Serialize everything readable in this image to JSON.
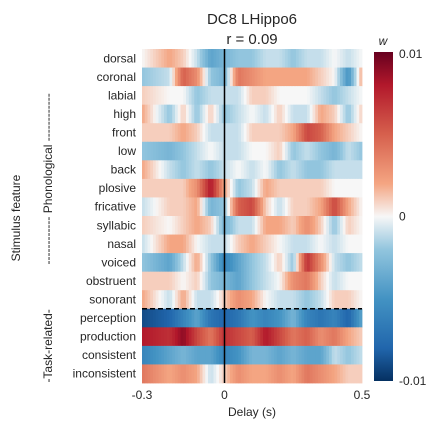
{
  "chart_data": {
    "type": "heatmap",
    "title": "DC8 LHippo6",
    "subtitle": "r = 0.09",
    "xlabel": "Delay (s)",
    "ylabel": "Stimulus feature",
    "xlim": [
      -0.3,
      0.5
    ],
    "x_ticks": [
      {
        "value": -0.3,
        "label": "-0.3"
      },
      {
        "value": 0,
        "label": "0"
      },
      {
        "value": 0.5,
        "label": "0.5"
      }
    ],
    "features": [
      "dorsal",
      "coronal",
      "labial",
      "high",
      "front",
      "low",
      "back",
      "plosive",
      "fricative",
      "syllabic",
      "nasal",
      "voiced",
      "obstruent",
      "sonorant",
      "perception",
      "production",
      "consistent",
      "inconsistent"
    ],
    "groups": [
      {
        "label": "------------ Phonological ------------",
        "rows": [
          0,
          13
        ]
      },
      {
        "label": "-Task-related-",
        "rows": [
          14,
          17
        ]
      }
    ],
    "colorbar": {
      "title": "w",
      "min": -0.01,
      "max": 0.01,
      "ticks": [
        {
          "value": 0.01,
          "label": "0.01"
        },
        {
          "value": 0,
          "label": "0"
        },
        {
          "value": -0.01,
          "label": "-0.01"
        }
      ]
    },
    "cell_keys": [
      -0.3,
      -0.2,
      -0.15,
      -0.1,
      -0.05,
      0,
      0.05,
      0.1,
      0.15,
      0.2,
      0.25,
      0.3,
      0.35,
      0.4,
      0.45,
      0.5
    ],
    "cell_values": [
      [
        0.0,
        0.002,
        0.001,
        -0.001,
        -0.004,
        -0.003,
        -0.002,
        -0.002,
        -0.001,
        -0.001,
        -0.002,
        -0.001,
        -0.001,
        0.0,
        -0.001,
        0.0
      ],
      [
        -0.002,
        -0.001,
        0.005,
        0.003,
        -0.002,
        -0.003,
        0.004,
        0.003,
        0.002,
        0.002,
        0.002,
        0.002,
        0.001,
        0.0,
        -0.005,
        0.002
      ],
      [
        0.001,
        0.0,
        0.0,
        -0.002,
        -0.001,
        -0.001,
        -0.001,
        0.001,
        0.001,
        0.0,
        0.0,
        0.0,
        -0.001,
        -0.002,
        -0.001,
        0.0
      ],
      [
        0.002,
        -0.002,
        0.001,
        -0.002,
        0.001,
        -0.002,
        -0.001,
        0.0,
        -0.001,
        0.001,
        -0.001,
        -0.001,
        0.002,
        0.001,
        -0.002,
        0.001
      ],
      [
        0.001,
        0.001,
        0.002,
        0.001,
        -0.001,
        -0.001,
        -0.001,
        0.001,
        0.001,
        0.001,
        0.002,
        0.006,
        0.005,
        0.002,
        0.001,
        0.0
      ],
      [
        -0.002,
        -0.003,
        -0.002,
        -0.001,
        0.0,
        -0.001,
        -0.001,
        0.0,
        0.0,
        0.001,
        -0.002,
        -0.001,
        -0.002,
        -0.003,
        -0.001,
        -0.002
      ],
      [
        0.002,
        -0.001,
        -0.002,
        -0.001,
        -0.002,
        -0.001,
        0.0,
        -0.001,
        0.0,
        -0.002,
        -0.001,
        -0.002,
        -0.002,
        -0.001,
        -0.001,
        -0.001
      ],
      [
        0.001,
        0.001,
        0.001,
        0.003,
        0.008,
        0.002,
        -0.002,
        -0.001,
        0.002,
        0.001,
        0.001,
        0.001,
        0.001,
        0.0,
        0.0,
        0.0
      ],
      [
        -0.001,
        0.001,
        0.001,
        0.002,
        -0.003,
        -0.002,
        0.005,
        0.006,
        0.001,
        -0.001,
        0.001,
        0.001,
        0.002,
        0.006,
        0.002,
        0.0
      ],
      [
        0.001,
        0.0,
        0.001,
        0.002,
        0.001,
        -0.003,
        -0.001,
        -0.001,
        0.002,
        0.002,
        0.001,
        0.003,
        0.001,
        -0.002,
        0.001,
        0.0
      ],
      [
        -0.001,
        0.002,
        0.002,
        0.0,
        -0.001,
        -0.001,
        0.001,
        0.002,
        0.001,
        0.0,
        -0.001,
        -0.001,
        0.0,
        -0.001,
        0.0,
        0.0
      ],
      [
        -0.002,
        -0.004,
        -0.001,
        0.002,
        -0.002,
        -0.006,
        -0.004,
        -0.002,
        -0.001,
        0.001,
        -0.002,
        0.007,
        0.003,
        -0.001,
        -0.002,
        -0.001
      ],
      [
        0.001,
        0.001,
        0.0,
        0.001,
        -0.002,
        -0.003,
        -0.004,
        -0.002,
        -0.001,
        0.0,
        0.003,
        0.004,
        0.001,
        -0.001,
        0.0,
        0.0
      ],
      [
        0.002,
        -0.001,
        0.002,
        -0.001,
        -0.001,
        0.001,
        0.003,
        0.002,
        0.0,
        -0.001,
        -0.001,
        -0.002,
        -0.001,
        0.001,
        0.001,
        0.0
      ],
      [
        -0.009,
        -0.008,
        -0.006,
        -0.004,
        -0.007,
        -0.008,
        -0.007,
        -0.005,
        -0.006,
        -0.005,
        -0.003,
        -0.006,
        -0.007,
        -0.006,
        -0.008,
        -0.004
      ],
      [
        0.008,
        0.007,
        0.009,
        0.006,
        0.004,
        0.007,
        0.006,
        0.005,
        0.008,
        0.006,
        0.004,
        0.005,
        0.003,
        0.004,
        0.002,
        0.001
      ],
      [
        -0.006,
        -0.004,
        -0.003,
        -0.004,
        -0.004,
        -0.006,
        -0.005,
        -0.003,
        -0.003,
        -0.004,
        -0.003,
        -0.004,
        -0.004,
        -0.001,
        -0.002,
        -0.001
      ],
      [
        0.004,
        0.002,
        0.003,
        0.002,
        -0.001,
        0.001,
        0.003,
        0.002,
        0.002,
        0.003,
        0.002,
        0.004,
        0.003,
        0.002,
        0.001,
        0.001
      ]
    ],
    "separator_after_row": 13,
    "colors": {
      "neg": "#053061",
      "zero": "#f7f7f7",
      "pos": "#67001f",
      "text": "#262626"
    }
  }
}
